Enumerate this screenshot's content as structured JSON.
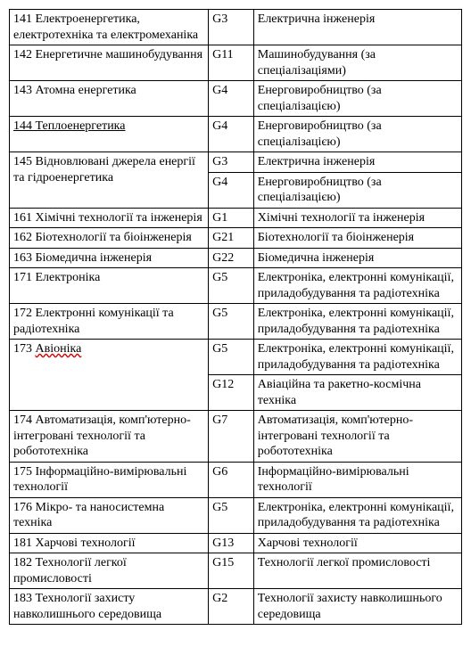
{
  "colors": {
    "text": "#000000",
    "border": "#000000",
    "background": "#ffffff",
    "underline_special": "#d00000"
  },
  "columns": {
    "widths_pct": [
      44,
      10,
      46
    ]
  },
  "rows": [
    {
      "left": "141 Електроенергетика, електротехніка та електромеханіка",
      "code": "G3",
      "right": "Електрична інженерія"
    },
    {
      "left": "142 Енергетичне машинобудування",
      "code": "G11",
      "right": "Машинобудування (за спеціалізаціями)"
    },
    {
      "left": "143 Атомна енергетика",
      "code": "G4",
      "right": "Енерговиробництво (за спеціалізацією)"
    },
    {
      "left": "144 Теплоенергетика",
      "left_underline": "black",
      "code": "G4",
      "right": "Енерговиробництво (за спеціалізацією)"
    },
    {
      "left": "145  Відновлювані джерела енергії та гідроенергетика",
      "left_rowspan": 2,
      "code": "G3",
      "right": "Електрична інженерія"
    },
    {
      "code": "G4",
      "right": "Енерговиробництво (за спеціалізацією)"
    },
    {
      "left": "161 Хімічні технології та інженерія",
      "code": "G1",
      "right": "Хімічні технології та інженерія"
    },
    {
      "left": "162 Біотехнології та біоінженерія",
      "code": "G21",
      "right": "Біотехнології та біоінженерія"
    },
    {
      "left": "163 Біомедична інженерія",
      "code": "G22",
      "right": "Біомедична інженерія"
    },
    {
      "left": "171 Електроніка",
      "code": "G5",
      "right": "Електроніка, електронні комунікації, приладобудування та радіотехніка"
    },
    {
      "left": "172 Електронні комунікації та радіотехніка",
      "code": "G5",
      "right": "Електроніка, електронні комунікації, приладобудування та радіотехніка"
    },
    {
      "left_plain": "173 ",
      "left_marked": "Авіоніка",
      "left_underline": "red",
      "left_rowspan": 2,
      "code": "G5",
      "right": "Електроніка, електронні комунікації, приладобудування та радіотехніка"
    },
    {
      "code": "G12",
      "right": "Авіаційна та ракетно-космічна техніка"
    },
    {
      "left": "174 Автоматизація, комп'ютерно-інтегровані технології та робототехніка",
      "code": "G7",
      "right": "Автоматизація, комп'ютерно-інтегровані технології та робототехніка"
    },
    {
      "left": "175 Інформаційно-вимірювальні технології",
      "code": "G6",
      "right": "Інформаційно-вимірювальні технології"
    },
    {
      "left": "176 Мікро- та наносистемна техніка",
      "code": "G5",
      "right": "Електроніка, електронні комунікації, приладобудування та радіотехніка"
    },
    {
      "left": "181 Харчові технології",
      "code": "G13",
      "right": "Харчові технології"
    },
    {
      "left": "182 Технології легкої промисловості",
      "code": "G15",
      "right": "Технології легкої промисловості"
    },
    {
      "left": "183 Технології захисту навколишнього середовища",
      "code": "G2",
      "right": "Технології захисту навколишнього середовища"
    }
  ]
}
